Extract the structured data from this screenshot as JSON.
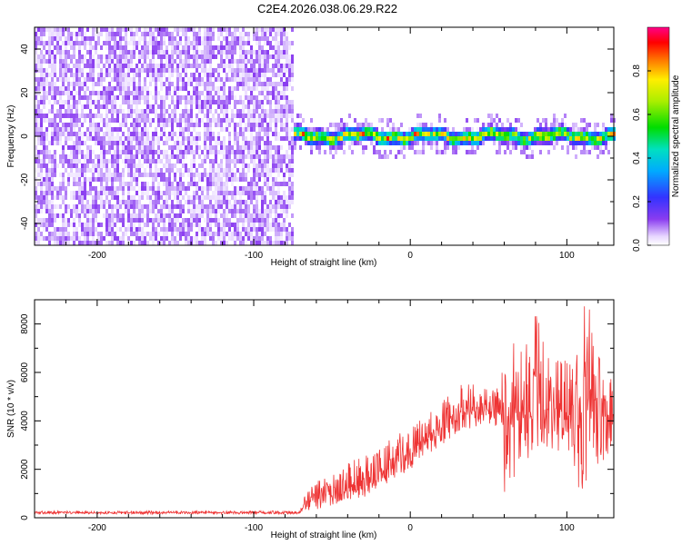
{
  "title": "C2E4.2026.038.06.29.R22",
  "colors": {
    "snr_line": "#ee3333",
    "frame": "#000000",
    "background": "#ffffff"
  },
  "chart_data": [
    {
      "type": "heatmap",
      "name": "spectrogram",
      "xlabel": "Height of straight line (km)",
      "ylabel": "Frequency (Hz)",
      "xlim": [
        -240,
        130
      ],
      "ylim": [
        -50,
        50
      ],
      "xticks": [
        -200,
        -100,
        0,
        100
      ],
      "yticks": [
        -40,
        -20,
        0,
        20,
        40
      ],
      "grid": false,
      "colormap": "rainbow (purple-blue-cyan-green-yellow-red-magenta)",
      "colorbar": {
        "label": "Normalized spectral amplitude",
        "range": [
          0.0,
          1.0
        ],
        "ticks": [
          0.0,
          0.2,
          0.4,
          0.6,
          0.8
        ]
      },
      "features": {
        "noise_region_x": [
          -240,
          -75
        ],
        "noise_amplitude_range": [
          0.0,
          0.12
        ],
        "signal_region_x": [
          -75,
          130
        ],
        "signal_center_freq_hz": 1,
        "signal_band_halfwidth_hz": 4,
        "signal_peak_amplitude": 0.95
      }
    },
    {
      "type": "line",
      "name": "snr",
      "xlabel": "Height of straight line (km)",
      "ylabel": "SNR (10 * v/v)",
      "xlim": [
        -240,
        130
      ],
      "ylim": [
        0,
        9000
      ],
      "xticks": [
        -200,
        -100,
        0,
        100
      ],
      "yticks": [
        0,
        2000,
        4000,
        6000,
        8000
      ],
      "grid": false,
      "series": [
        {
          "x": [
            -240,
            -200,
            -150,
            -100,
            -70,
            -68,
            -60,
            -50,
            -40,
            -30,
            -20,
            -10,
            0,
            10,
            20,
            30,
            40,
            50,
            58,
            60,
            70,
            80,
            90,
            100,
            110,
            115,
            120,
            130
          ],
          "y": [
            200,
            200,
            220,
            200,
            200,
            600,
            800,
            1000,
            1100,
            1200,
            1800,
            2200,
            2800,
            3200,
            3800,
            4300,
            4400,
            4500,
            4500,
            4200,
            4300,
            4400,
            4400,
            4300,
            4200,
            4500,
            4300,
            4300
          ],
          "noise_envelope_low": [
            150,
            150,
            150,
            150,
            150,
            200,
            300,
            500,
            700,
            800,
            1200,
            1500,
            2000,
            2500,
            3000,
            3500,
            3700,
            3800,
            3700,
            1000,
            2000,
            2800,
            2800,
            2500,
            800,
            1500,
            2000,
            3000
          ],
          "noise_envelope_high": [
            280,
            280,
            280,
            280,
            300,
            1200,
            1600,
            2000,
            2300,
            2600,
            3000,
            3400,
            3800,
            4300,
            4800,
            5600,
            5500,
            5500,
            5500,
            7600,
            7000,
            8500,
            6500,
            6500,
            9000,
            8600,
            6800,
            5700
          ]
        }
      ]
    }
  ]
}
